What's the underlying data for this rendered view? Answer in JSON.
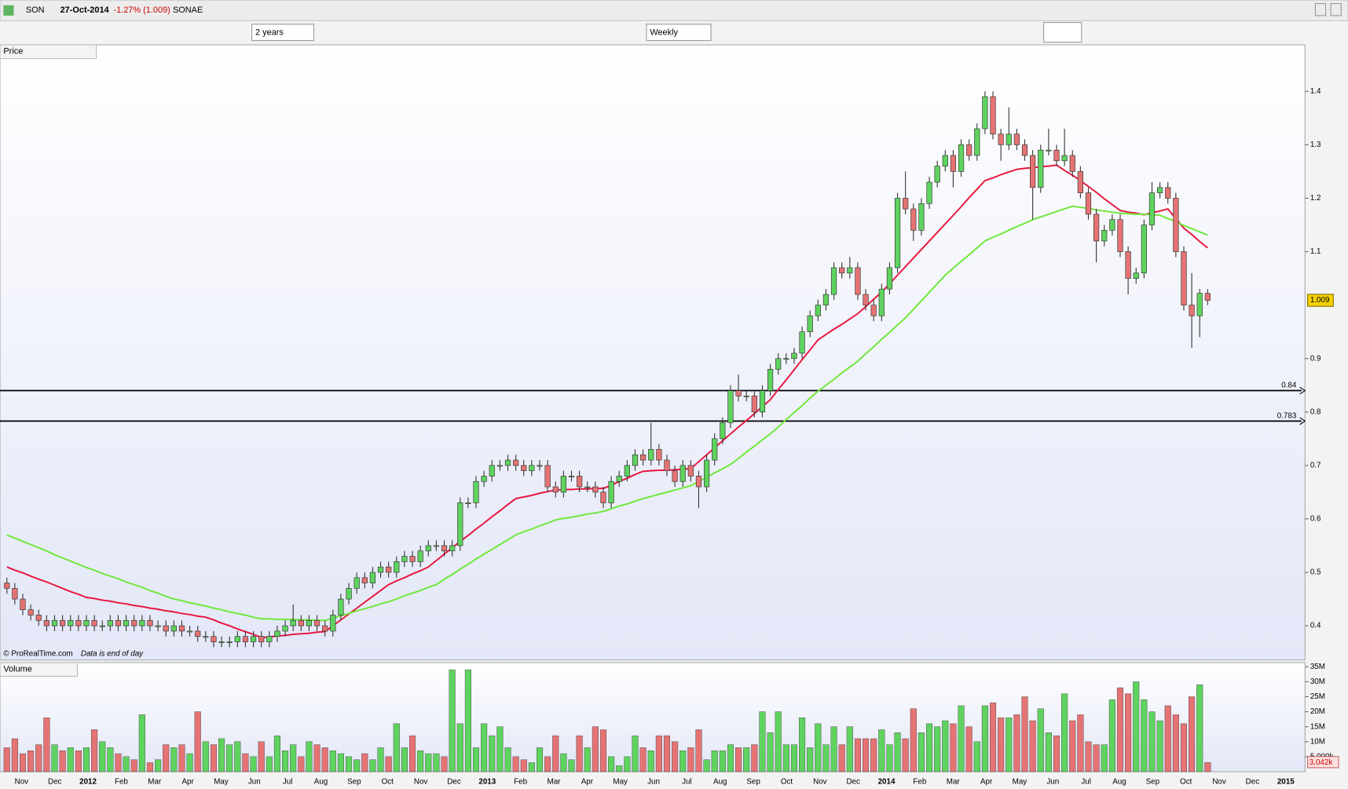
{
  "header": {
    "symbol": "SON",
    "date": "27-Oct-2014",
    "change": "-1.27% (1.009)",
    "name": "SONAE",
    "period": "2 years",
    "interval": "Weekly",
    "footer_source": "© ProRealTime.com",
    "footer_note": "Data is end of day"
  },
  "chart_data": [
    {
      "type": "candlestick",
      "title": "Price",
      "up_color": "#5fd35f",
      "down_color": "#e57373",
      "ylim": [
        0.336,
        1.487
      ],
      "yticks": [
        0.4,
        0.5,
        0.6,
        0.7,
        0.8,
        0.9,
        1.1,
        1.2,
        1.3,
        1.4
      ],
      "x_labels": [
        "Nov",
        "Dec",
        "2012",
        "Feb",
        "Mar",
        "Apr",
        "May",
        "Jun",
        "Jul",
        "Aug",
        "Sep",
        "Oct",
        "Nov",
        "Dec",
        "2013",
        "Feb",
        "Mar",
        "Apr",
        "May",
        "Jun",
        "Jul",
        "Aug",
        "Sep",
        "Oct",
        "Nov",
        "Dec",
        "2014",
        "Feb",
        "Mar",
        "Apr",
        "May",
        "Jun",
        "Jul",
        "Aug",
        "Sep",
        "Oct",
        "Nov",
        "Dec",
        "2015"
      ],
      "levels": [
        0.84,
        0.783
      ],
      "open": [
        0.48,
        0.47,
        0.45,
        0.43,
        0.42,
        0.41,
        0.4,
        0.41,
        0.4,
        0.41,
        0.4,
        0.41,
        0.4,
        0.4,
        0.41,
        0.4,
        0.41,
        0.4,
        0.41,
        0.4,
        0.4,
        0.39,
        0.4,
        0.39,
        0.39,
        0.38,
        0.38,
        0.37,
        0.37,
        0.37,
        0.38,
        0.37,
        0.38,
        0.37,
        0.38,
        0.39,
        0.4,
        0.41,
        0.4,
        0.41,
        0.4,
        0.39,
        0.42,
        0.45,
        0.47,
        0.49,
        0.48,
        0.5,
        0.51,
        0.5,
        0.52,
        0.53,
        0.52,
        0.54,
        0.55,
        0.55,
        0.54,
        0.55,
        0.63,
        0.63,
        0.67,
        0.68,
        0.7,
        0.7,
        0.71,
        0.7,
        0.69,
        0.7,
        0.7,
        0.66,
        0.65,
        0.68,
        0.68,
        0.66,
        0.66,
        0.65,
        0.63,
        0.67,
        0.68,
        0.7,
        0.72,
        0.71,
        0.73,
        0.71,
        0.69,
        0.67,
        0.7,
        0.68,
        0.66,
        0.71,
        0.75,
        0.78,
        0.84,
        0.83,
        0.83,
        0.8,
        0.84,
        0.88,
        0.9,
        0.9,
        0.91,
        0.95,
        0.98,
        1.0,
        1.02,
        1.07,
        1.06,
        1.07,
        1.02,
        1.0,
        0.98,
        1.03,
        1.07,
        1.2,
        1.18,
        1.14,
        1.19,
        1.23,
        1.26,
        1.28,
        1.25,
        1.3,
        1.28,
        1.33,
        1.39,
        1.32,
        1.3,
        1.32,
        1.3,
        1.28,
        1.22,
        1.29,
        1.29,
        1.27,
        1.28,
        1.25,
        1.21,
        1.17,
        1.12,
        1.14,
        1.16,
        1.1,
        1.05,
        1.06,
        1.15,
        1.21,
        1.22,
        1.2,
        1.1,
        1.0,
        0.98,
        1.022
      ],
      "high": [
        0.49,
        0.48,
        0.46,
        0.44,
        0.43,
        0.42,
        0.42,
        0.42,
        0.42,
        0.42,
        0.42,
        0.42,
        0.41,
        0.42,
        0.42,
        0.42,
        0.42,
        0.42,
        0.42,
        0.41,
        0.41,
        0.41,
        0.41,
        0.4,
        0.4,
        0.39,
        0.39,
        0.38,
        0.38,
        0.39,
        0.39,
        0.39,
        0.39,
        0.39,
        0.4,
        0.41,
        0.44,
        0.42,
        0.42,
        0.42,
        0.41,
        0.43,
        0.46,
        0.48,
        0.5,
        0.5,
        0.51,
        0.52,
        0.52,
        0.53,
        0.54,
        0.54,
        0.55,
        0.56,
        0.56,
        0.56,
        0.56,
        0.64,
        0.64,
        0.68,
        0.69,
        0.71,
        0.71,
        0.72,
        0.72,
        0.71,
        0.71,
        0.71,
        0.71,
        0.67,
        0.69,
        0.69,
        0.69,
        0.67,
        0.67,
        0.66,
        0.68,
        0.69,
        0.71,
        0.73,
        0.73,
        0.78,
        0.74,
        0.72,
        0.7,
        0.71,
        0.71,
        0.69,
        0.72,
        0.76,
        0.79,
        0.85,
        0.87,
        0.84,
        0.84,
        0.85,
        0.89,
        0.91,
        0.91,
        0.92,
        0.96,
        0.99,
        1.01,
        1.03,
        1.08,
        1.08,
        1.09,
        1.08,
        1.03,
        1.01,
        1.04,
        1.08,
        1.21,
        1.25,
        1.19,
        1.2,
        1.24,
        1.27,
        1.29,
        1.29,
        1.31,
        1.31,
        1.34,
        1.4,
        1.4,
        1.33,
        1.37,
        1.33,
        1.31,
        1.29,
        1.3,
        1.33,
        1.3,
        1.33,
        1.29,
        1.26,
        1.22,
        1.18,
        1.15,
        1.17,
        1.17,
        1.11,
        1.07,
        1.16,
        1.23,
        1.23,
        1.23,
        1.21,
        1.11,
        1.06,
        1.03,
        1.03
      ],
      "low": [
        0.46,
        0.44,
        0.42,
        0.41,
        0.4,
        0.39,
        0.39,
        0.39,
        0.39,
        0.39,
        0.39,
        0.39,
        0.39,
        0.39,
        0.39,
        0.39,
        0.39,
        0.39,
        0.39,
        0.39,
        0.38,
        0.38,
        0.38,
        0.38,
        0.37,
        0.37,
        0.36,
        0.36,
        0.36,
        0.36,
        0.36,
        0.36,
        0.36,
        0.36,
        0.37,
        0.38,
        0.39,
        0.39,
        0.39,
        0.39,
        0.38,
        0.38,
        0.41,
        0.44,
        0.46,
        0.47,
        0.47,
        0.49,
        0.49,
        0.49,
        0.51,
        0.51,
        0.51,
        0.53,
        0.54,
        0.53,
        0.53,
        0.54,
        0.62,
        0.62,
        0.66,
        0.67,
        0.69,
        0.69,
        0.69,
        0.68,
        0.68,
        0.69,
        0.65,
        0.64,
        0.64,
        0.67,
        0.65,
        0.65,
        0.64,
        0.62,
        0.62,
        0.66,
        0.67,
        0.69,
        0.7,
        0.7,
        0.7,
        0.68,
        0.66,
        0.66,
        0.67,
        0.62,
        0.65,
        0.7,
        0.74,
        0.77,
        0.82,
        0.82,
        0.79,
        0.79,
        0.83,
        0.87,
        0.89,
        0.89,
        0.9,
        0.94,
        0.97,
        0.99,
        1.01,
        1.05,
        1.05,
        1.01,
        0.99,
        0.97,
        0.97,
        1.02,
        1.06,
        1.17,
        1.12,
        1.13,
        1.18,
        1.22,
        1.25,
        1.22,
        1.24,
        1.27,
        1.27,
        1.32,
        1.31,
        1.27,
        1.29,
        1.29,
        1.27,
        1.16,
        1.21,
        1.28,
        1.26,
        1.26,
        1.24,
        1.2,
        1.16,
        1.08,
        1.11,
        1.13,
        1.09,
        1.02,
        1.04,
        1.05,
        1.14,
        1.2,
        1.19,
        1.09,
        0.99,
        0.92,
        0.94,
        1.0
      ],
      "close": [
        0.47,
        0.45,
        0.43,
        0.42,
        0.41,
        0.4,
        0.41,
        0.4,
        0.41,
        0.4,
        0.41,
        0.4,
        0.4,
        0.41,
        0.4,
        0.41,
        0.4,
        0.41,
        0.4,
        0.4,
        0.39,
        0.4,
        0.39,
        0.39,
        0.38,
        0.38,
        0.37,
        0.37,
        0.37,
        0.38,
        0.37,
        0.38,
        0.37,
        0.38,
        0.39,
        0.4,
        0.41,
        0.4,
        0.41,
        0.4,
        0.39,
        0.42,
        0.45,
        0.47,
        0.49,
        0.48,
        0.5,
        0.51,
        0.5,
        0.52,
        0.53,
        0.52,
        0.54,
        0.55,
        0.55,
        0.54,
        0.55,
        0.63,
        0.63,
        0.67,
        0.68,
        0.7,
        0.7,
        0.71,
        0.7,
        0.69,
        0.7,
        0.7,
        0.66,
        0.65,
        0.68,
        0.68,
        0.66,
        0.66,
        0.65,
        0.63,
        0.67,
        0.68,
        0.7,
        0.72,
        0.71,
        0.73,
        0.71,
        0.69,
        0.67,
        0.7,
        0.68,
        0.66,
        0.71,
        0.75,
        0.78,
        0.84,
        0.83,
        0.83,
        0.8,
        0.84,
        0.88,
        0.9,
        0.9,
        0.91,
        0.95,
        0.98,
        1.0,
        1.02,
        1.07,
        1.06,
        1.07,
        1.02,
        1.0,
        0.98,
        1.03,
        1.07,
        1.2,
        1.18,
        1.14,
        1.19,
        1.23,
        1.26,
        1.28,
        1.25,
        1.3,
        1.28,
        1.33,
        1.39,
        1.32,
        1.3,
        1.32,
        1.3,
        1.28,
        1.22,
        1.29,
        1.29,
        1.27,
        1.28,
        1.25,
        1.21,
        1.17,
        1.12,
        1.14,
        1.16,
        1.1,
        1.05,
        1.06,
        1.15,
        1.21,
        1.22,
        1.2,
        1.1,
        1.0,
        0.98,
        1.022,
        1.009
      ],
      "moving_averages": [
        {
          "color": "#e8173f",
          "values": [
            0.51,
            0.504,
            0.499,
            0.493,
            0.487,
            0.482,
            0.476,
            0.47,
            0.464,
            0.459,
            0.453,
            0.451,
            0.448,
            0.446,
            0.443,
            0.441,
            0.438,
            0.436,
            0.433,
            0.431,
            0.428,
            0.426,
            0.423,
            0.421,
            0.418,
            0.416,
            0.411,
            0.405,
            0.4,
            0.394,
            0.389,
            0.384,
            0.378,
            0.379,
            0.381,
            0.382,
            0.384,
            0.385,
            0.386,
            0.388,
            0.389,
            0.4,
            0.411,
            0.422,
            0.433,
            0.444,
            0.455,
            0.466,
            0.477,
            0.484,
            0.49,
            0.497,
            0.503,
            0.51,
            0.522,
            0.534,
            0.546,
            0.558,
            0.569,
            0.581,
            0.592,
            0.604,
            0.615,
            0.627,
            0.638,
            0.641,
            0.644,
            0.648,
            0.651,
            0.654,
            0.655,
            0.655,
            0.656,
            0.656,
            0.657,
            0.657,
            0.663,
            0.67,
            0.676,
            0.683,
            0.689,
            0.69,
            0.691,
            0.691,
            0.692,
            0.693,
            0.694,
            0.707,
            0.72,
            0.733,
            0.746,
            0.759,
            0.772,
            0.784,
            0.797,
            0.81,
            0.823,
            0.842,
            0.86,
            0.879,
            0.898,
            0.916,
            0.935,
            0.945,
            0.955,
            0.964,
            0.974,
            0.984,
            0.997,
            1.011,
            1.024,
            1.04,
            1.056,
            1.072,
            1.088,
            1.104,
            1.12,
            1.136,
            1.152,
            1.168,
            1.184,
            1.201,
            1.217,
            1.233,
            1.238,
            1.244,
            1.249,
            1.254,
            1.256,
            1.257,
            1.259,
            1.26,
            1.262,
            1.252,
            1.243,
            1.233,
            1.222,
            1.211,
            1.199,
            1.188,
            1.177,
            1.174,
            1.172,
            1.169,
            1.173,
            1.176,
            1.18,
            1.162,
            1.144,
            1.132,
            1.119,
            1.107
          ]
        },
        {
          "color": "#6fe83a",
          "values": [
            0.57,
            0.564,
            0.558,
            0.552,
            0.546,
            0.54,
            0.533,
            0.527,
            0.521,
            0.515,
            0.509,
            0.504,
            0.498,
            0.493,
            0.488,
            0.482,
            0.477,
            0.472,
            0.466,
            0.461,
            0.455,
            0.45,
            0.447,
            0.443,
            0.44,
            0.437,
            0.433,
            0.43,
            0.426,
            0.423,
            0.42,
            0.416,
            0.413,
            0.413,
            0.412,
            0.412,
            0.412,
            0.411,
            0.411,
            0.41,
            0.41,
            0.414,
            0.419,
            0.423,
            0.428,
            0.432,
            0.436,
            0.441,
            0.445,
            0.45,
            0.456,
            0.461,
            0.466,
            0.472,
            0.477,
            0.487,
            0.496,
            0.506,
            0.515,
            0.525,
            0.534,
            0.543,
            0.552,
            0.561,
            0.57,
            0.576,
            0.581,
            0.587,
            0.592,
            0.598,
            0.601,
            0.603,
            0.606,
            0.609,
            0.611,
            0.614,
            0.619,
            0.624,
            0.628,
            0.633,
            0.638,
            0.642,
            0.646,
            0.65,
            0.654,
            0.658,
            0.662,
            0.67,
            0.678,
            0.686,
            0.694,
            0.702,
            0.713,
            0.725,
            0.736,
            0.748,
            0.759,
            0.772,
            0.786,
            0.799,
            0.812,
            0.826,
            0.839,
            0.85,
            0.861,
            0.873,
            0.884,
            0.895,
            0.909,
            0.922,
            0.936,
            0.949,
            0.963,
            0.976,
            0.992,
            1.008,
            1.024,
            1.04,
            1.056,
            1.069,
            1.082,
            1.094,
            1.107,
            1.12,
            1.127,
            1.133,
            1.14,
            1.147,
            1.153,
            1.16,
            1.165,
            1.17,
            1.175,
            1.18,
            1.185,
            1.183,
            1.181,
            1.178,
            1.176,
            1.174,
            1.172,
            1.171,
            1.17,
            1.17,
            1.169,
            1.168,
            1.162,
            1.156,
            1.149,
            1.143,
            1.137,
            1.131
          ]
        }
      ]
    },
    {
      "type": "bar",
      "title": "Volume",
      "ylim": [
        0,
        36.4
      ],
      "yticks": [
        {
          "value": 35,
          "label": "35M"
        },
        {
          "value": 30,
          "label": "30M"
        },
        {
          "value": 25,
          "label": "25M"
        },
        {
          "value": 20,
          "label": "20M"
        },
        {
          "value": 15,
          "label": "15M"
        },
        {
          "value": 10,
          "label": "10M"
        },
        {
          "value": 5,
          "label": "5,000k"
        }
      ],
      "last_value_label": "3,042k",
      "values": [
        8,
        11,
        6,
        7,
        9,
        18,
        9,
        7,
        8,
        7,
        8,
        14,
        10,
        8,
        6,
        5,
        4,
        19,
        3,
        4,
        9,
        8,
        9,
        6,
        20,
        10,
        9,
        11,
        9,
        10,
        6,
        5,
        10,
        5,
        12,
        7,
        9,
        5,
        10,
        9,
        8,
        7,
        6,
        5,
        4,
        6,
        4,
        8,
        5,
        16,
        8,
        12,
        7,
        6,
        6,
        5,
        34,
        16,
        34,
        8,
        16,
        12,
        15,
        8,
        5,
        4,
        3,
        8,
        5,
        12,
        6,
        4,
        12,
        8,
        15,
        14,
        5,
        2,
        5,
        12,
        8,
        7,
        12,
        12,
        10,
        7,
        8,
        14,
        4,
        7,
        7,
        9,
        8,
        8,
        9,
        20,
        13,
        20,
        9,
        9,
        18,
        8,
        16,
        9,
        15,
        9,
        15,
        11,
        11,
        11,
        14,
        9,
        13,
        11,
        21,
        13,
        16,
        15,
        17,
        16,
        22,
        15,
        10,
        22,
        23,
        18,
        18,
        19,
        25,
        17,
        21,
        13,
        12,
        26,
        17,
        19,
        10,
        9,
        9,
        24,
        28,
        26,
        30,
        24,
        20,
        17,
        22,
        19,
        16,
        25,
        29,
        3.042
      ]
    }
  ]
}
